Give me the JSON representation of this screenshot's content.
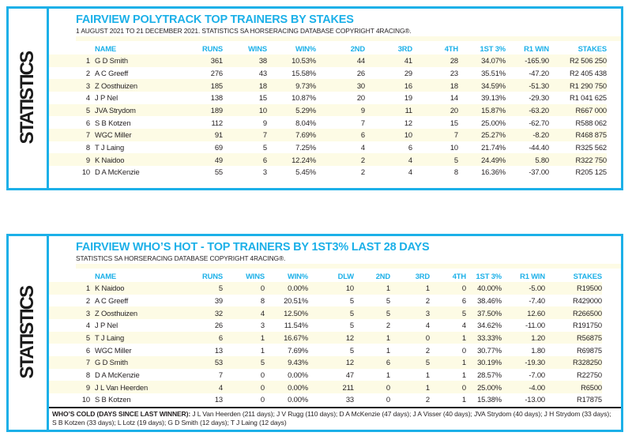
{
  "colors": {
    "accent": "#1cb0e8",
    "stripe": "#fdfbe5",
    "ink": "#231f20"
  },
  "sidebar_label": "STATISTICS",
  "panel1": {
    "title": "FAIRVIEW POLYTRACK TOP TRAINERS BY STAKES",
    "subtitle": "1 AUGUST 2021 TO 21 DECEMBER 2021. STATISTICS SA HORSERACING DATABASE COPYRIGHT 4RACING®.",
    "columns": [
      "NAME",
      "RUNS",
      "WINS",
      "WIN%",
      "2ND",
      "3RD",
      "4TH",
      "1ST 3%",
      "R1 WIN",
      "STAKES"
    ],
    "rows": [
      [
        "1",
        "G D Smith",
        "361",
        "38",
        "10.53%",
        "44",
        "41",
        "28",
        "34.07%",
        "-165.90",
        "R2 506 250"
      ],
      [
        "2",
        "A C Greeff",
        "276",
        "43",
        "15.58%",
        "26",
        "29",
        "23",
        "35.51%",
        "-47.20",
        "R2 405 438"
      ],
      [
        "3",
        "Z Oosthuizen",
        "185",
        "18",
        "9.73%",
        "30",
        "16",
        "18",
        "34.59%",
        "-51.30",
        "R1 290 750"
      ],
      [
        "4",
        "J P Nel",
        "138",
        "15",
        "10.87%",
        "20",
        "19",
        "14",
        "39.13%",
        "-29.30",
        "R1 041 625"
      ],
      [
        "5",
        "JVA Strydom",
        "189",
        "10",
        "5.29%",
        "9",
        "11",
        "20",
        "15.87%",
        "-63.20",
        "R667 000"
      ],
      [
        "6",
        "S B Kotzen",
        "112",
        "9",
        "8.04%",
        "7",
        "12",
        "15",
        "25.00%",
        "-62.70",
        "R588 062"
      ],
      [
        "7",
        "WGC Miller",
        "91",
        "7",
        "7.69%",
        "6",
        "10",
        "7",
        "25.27%",
        "-8.20",
        "R468 875"
      ],
      [
        "8",
        "T J Laing",
        "69",
        "5",
        "7.25%",
        "4",
        "6",
        "10",
        "21.74%",
        "-44.40",
        "R325 562"
      ],
      [
        "9",
        "K Naidoo",
        "49",
        "6",
        "12.24%",
        "2",
        "4",
        "5",
        "24.49%",
        "5.80",
        "R322 750"
      ],
      [
        "10",
        "D A McKenzie",
        "55",
        "3",
        "5.45%",
        "2",
        "4",
        "8",
        "16.36%",
        "-37.00",
        "R205 125"
      ]
    ]
  },
  "panel2": {
    "title": "FAIRVIEW WHO’S HOT - TOP TRAINERS BY 1ST3% LAST 28 DAYS",
    "subtitle": "STATISTICS SA HORSERACING DATABASE COPYRIGHT 4RACING®.",
    "columns": [
      "NAME",
      "RUNS",
      "WINS",
      "WIN%",
      "DLW",
      "2ND",
      "3RD",
      "4TH",
      "1ST 3%",
      "R1 WIN",
      "STAKES"
    ],
    "rows": [
      [
        "1",
        "K Naidoo",
        "5",
        "0",
        "0.00%",
        "10",
        "1",
        "1",
        "0",
        "40.00%",
        "-5.00",
        "R19500"
      ],
      [
        "2",
        "A C Greeff",
        "39",
        "8",
        "20.51%",
        "5",
        "5",
        "2",
        "6",
        "38.46%",
        "-7.40",
        "R429000"
      ],
      [
        "3",
        "Z Oosthuizen",
        "32",
        "4",
        "12.50%",
        "5",
        "5",
        "3",
        "5",
        "37.50%",
        "12.60",
        "R266500"
      ],
      [
        "4",
        "J P Nel",
        "26",
        "3",
        "11.54%",
        "5",
        "2",
        "4",
        "4",
        "34.62%",
        "-11.00",
        "R191750"
      ],
      [
        "5",
        "T J Laing",
        "6",
        "1",
        "16.67%",
        "12",
        "1",
        "0",
        "1",
        "33.33%",
        "1.20",
        "R56875"
      ],
      [
        "6",
        "WGC Miller",
        "13",
        "1",
        "7.69%",
        "5",
        "1",
        "2",
        "0",
        "30.77%",
        "1.80",
        "R69875"
      ],
      [
        "7",
        "G D Smith",
        "53",
        "5",
        "9.43%",
        "12",
        "6",
        "5",
        "1",
        "30.19%",
        "-19.30",
        "R328250"
      ],
      [
        "8",
        "D A McKenzie",
        "7",
        "0",
        "0.00%",
        "47",
        "1",
        "1",
        "1",
        "28.57%",
        "-7.00",
        "R22750"
      ],
      [
        "9",
        "J L Van Heerden",
        "4",
        "0",
        "0.00%",
        "211",
        "0",
        "1",
        "0",
        "25.00%",
        "-4.00",
        "R6500"
      ],
      [
        "10",
        "S B Kotzen",
        "13",
        "0",
        "0.00%",
        "33",
        "0",
        "2",
        "1",
        "15.38%",
        "-13.00",
        "R17875"
      ]
    ],
    "footer_label": "WHO’S COLD (DAYS SINCE LAST WINNER):",
    "footer_text": " J L Van Heerden (211 days); J V Rugg (110 days); D A McKenzie (47 days); J A Visser (40 days); JVA Strydom (40 days); J H Strydom (33 days); S B Kotzen (33 days); L Lotz (19 days); G D Smith (12 days); T J Laing (12 days)"
  }
}
